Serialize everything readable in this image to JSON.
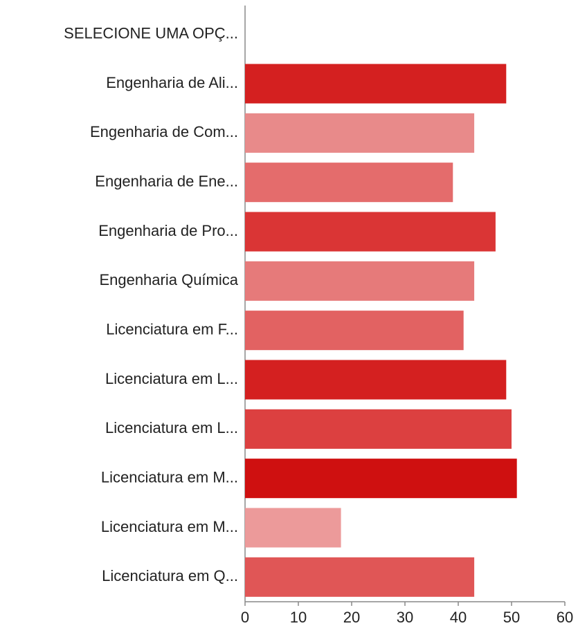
{
  "chart_data": {
    "type": "barh",
    "categories": [
      "SELECIONE UMA OPÇ...",
      "Engenharia de Ali...",
      "Engenharia de Com...",
      "Engenharia de Ene...",
      "Engenharia de Pro...",
      "Engenharia Química",
      "Licenciatura em F...",
      "Licenciatura em L...",
      "Licenciatura em L...",
      "Licenciatura em M...",
      "Licenciatura em M...",
      "Licenciatura em Q..."
    ],
    "values": [
      0,
      49,
      43,
      39,
      47,
      43,
      41,
      49,
      50,
      51,
      18,
      43
    ],
    "colors": [
      null,
      "#d42020",
      "#e88a8a",
      "#e46c6c",
      "#da3535",
      "#e67a7a",
      "#e26262",
      "#d42020",
      "#dc4040",
      "#cf1010",
      "#ec9a9a",
      "#e05656"
    ],
    "xlim": [
      0,
      60
    ],
    "xticks": [
      0,
      10,
      20,
      30,
      40,
      50,
      60
    ],
    "grid": false
  }
}
